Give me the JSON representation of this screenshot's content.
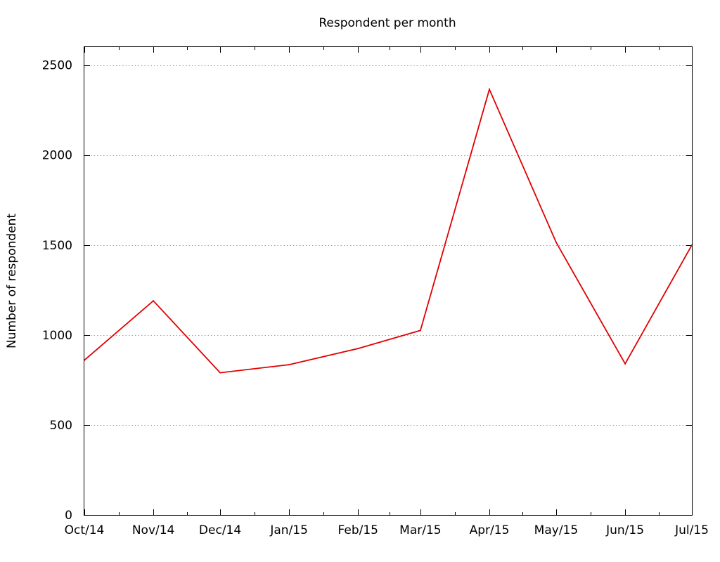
{
  "chart_data": {
    "type": "line",
    "title": "Respondent per month",
    "xlabel": "",
    "ylabel": "Number of respondent",
    "categories": [
      "Oct/14",
      "Nov/14",
      "Dec/14",
      "Jan/15",
      "Feb/15",
      "Mar/15",
      "Apr/15",
      "May/15",
      "Jun/15",
      "Jul/15"
    ],
    "ylim": [
      0,
      2600
    ],
    "yticks": [
      0,
      500,
      1000,
      1500,
      2000,
      2500
    ],
    "grid": true,
    "series": [
      {
        "color": "#e00000",
        "points": [
          {
            "x": "2014-10-01",
            "y": 860
          },
          {
            "x": "2014-11-01",
            "y": 1190
          },
          {
            "x": "2014-12-01",
            "y": 790
          },
          {
            "x": "2015-01-01",
            "y": 835
          },
          {
            "x": "2015-02-01",
            "y": 925
          },
          {
            "x": "2015-03-01",
            "y": 1025
          },
          {
            "x": "2015-04-01",
            "y": 2365
          },
          {
            "x": "2015-05-01",
            "y": 1515
          },
          {
            "x": "2015-06-01",
            "y": 840
          },
          {
            "x": "2015-07-01",
            "y": 1500
          }
        ]
      }
    ]
  }
}
